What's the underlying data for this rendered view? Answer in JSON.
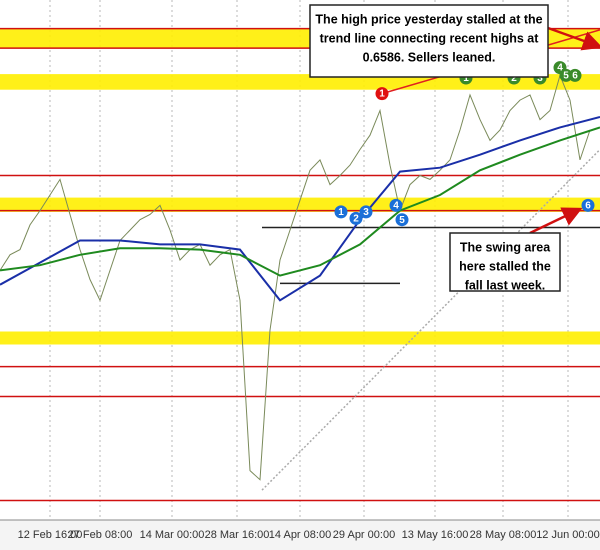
{
  "chart_data": {
    "type": "line",
    "xlim": [
      0,
      120
    ],
    "xticks": [
      {
        "value": 10,
        "label": "12 Feb 16:00"
      },
      {
        "value": 20,
        "label": "27 Feb 08:00"
      },
      {
        "value": 34.4,
        "label": "14 Mar 00:00"
      },
      {
        "value": 47.4,
        "label": "28 Mar 16:00"
      },
      {
        "value": 60,
        "label": "14 Apr 08:00"
      },
      {
        "value": 72.8,
        "label": "29 Apr 00:00"
      },
      {
        "value": 87,
        "label": "13 May 16:00"
      },
      {
        "value": 100.6,
        "label": "28 May 08:00"
      },
      {
        "value": 113.6,
        "label": "12 Jun 00:00"
      }
    ],
    "ylim": [
      0.625,
      0.665
    ],
    "grid": true,
    "series": [
      {
        "color": "#7a8a5a",
        "x": [
          0,
          2,
          4,
          6,
          8,
          10,
          12,
          14,
          16,
          18,
          20,
          22,
          24,
          26,
          28,
          30,
          32,
          34,
          36,
          38,
          40,
          42,
          44,
          46,
          48,
          50,
          52,
          54,
          56,
          58,
          60,
          62,
          64,
          66,
          68,
          70,
          72,
          74,
          76,
          78,
          80,
          82,
          84,
          86,
          88,
          90,
          92,
          94,
          96,
          98,
          100,
          102,
          104,
          106,
          108,
          110,
          112,
          114,
          116,
          118
        ],
        "values": [
          0.6442,
          0.6454,
          0.6458,
          0.6477,
          0.6488,
          0.65,
          0.6512,
          0.6485,
          0.6458,
          0.6435,
          0.6419,
          0.6442,
          0.6465,
          0.6473,
          0.6481,
          0.6485,
          0.6492,
          0.6473,
          0.645,
          0.6458,
          0.6462,
          0.6446,
          0.6454,
          0.6458,
          0.6419,
          0.6288,
          0.6281,
          0.6396,
          0.645,
          0.6473,
          0.6496,
          0.6519,
          0.6527,
          0.6508,
          0.6515,
          0.6523,
          0.6535,
          0.6546,
          0.6565,
          0.6523,
          0.6488,
          0.6508,
          0.6515,
          0.6512,
          0.6519,
          0.6527,
          0.655,
          0.6577,
          0.6558,
          0.6542,
          0.655,
          0.6565,
          0.6573,
          0.6577,
          0.6558,
          0.6565,
          0.6592,
          0.6573,
          0.6527,
          0.655
        ]
      },
      {
        "color": "#1a2fa8",
        "x": [
          0,
          8,
          16,
          24,
          32,
          40,
          48,
          56,
          64,
          72,
          80,
          88,
          96,
          104,
          112,
          120
        ],
        "values": [
          0.6431,
          0.6448,
          0.6465,
          0.6465,
          0.6462,
          0.6462,
          0.6458,
          0.6419,
          0.6438,
          0.6481,
          0.6518,
          0.6521,
          0.6531,
          0.6542,
          0.6552,
          0.656
        ]
      },
      {
        "color": "#1f8a1f",
        "x": [
          0,
          8,
          16,
          24,
          32,
          40,
          48,
          56,
          64,
          72,
          80,
          88,
          96,
          104,
          112,
          120
        ],
        "values": [
          0.6442,
          0.6446,
          0.6454,
          0.6459,
          0.6459,
          0.6458,
          0.6454,
          0.6438,
          0.6446,
          0.6462,
          0.6488,
          0.65,
          0.6519,
          0.6531,
          0.6542,
          0.6552
        ]
      }
    ],
    "bands": [
      {
        "from": 0.6613,
        "to": 0.6628,
        "color": "#ffee00"
      },
      {
        "from": 0.6581,
        "to": 0.6593,
        "color": "#ffee00"
      },
      {
        "from": 0.6487,
        "to": 0.6498,
        "color": "#ffee00"
      },
      {
        "from": 0.6385,
        "to": 0.6395,
        "color": "#ffee00"
      }
    ],
    "levels": {
      "color": "#d01010",
      "values": [
        0.6628,
        0.6613,
        0.6515,
        0.6488,
        0.6368,
        0.6345,
        0.6265
      ]
    },
    "trendlines": [
      {
        "x": [
          76.4,
          120
        ],
        "y": [
          0.6578,
          0.6627
        ],
        "color": "#e02020"
      },
      {
        "x": [
          52.4,
          120
        ],
        "y": [
          0.6273,
          0.6535
        ],
        "color": "#aaaaaa"
      },
      {
        "x": [
          52.4,
          120
        ],
        "y": [
          0.6475,
          0.6475
        ],
        "color": "#222222"
      },
      {
        "x": [
          56,
          80
        ],
        "y": [
          0.6432,
          0.6432
        ],
        "color": "#222222"
      }
    ],
    "markers": [
      {
        "label": "1",
        "color": "#e01010",
        "x": 76.4,
        "y": 0.6578
      },
      {
        "label": "1",
        "color": "#3a8a2a",
        "x": 93.2,
        "y": 0.659
      },
      {
        "label": "2",
        "color": "#3a8a2a",
        "x": 102.8,
        "y": 0.659
      },
      {
        "label": "3",
        "color": "#3a8a2a",
        "x": 108,
        "y": 0.659
      },
      {
        "label": "4",
        "color": "#3a8a2a",
        "x": 112,
        "y": 0.6598
      },
      {
        "label": "5",
        "color": "#3a8a2a",
        "x": 113.2,
        "y": 0.6592
      },
      {
        "label": "6",
        "color": "#3a8a2a",
        "x": 115,
        "y": 0.6592
      },
      {
        "label": "1",
        "color": "#1a6fd8",
        "x": 68.2,
        "y": 0.6487
      },
      {
        "label": "2",
        "color": "#1a6fd8",
        "x": 71.2,
        "y": 0.6482
      },
      {
        "label": "3",
        "color": "#1a6fd8",
        "x": 73.2,
        "y": 0.6487
      },
      {
        "label": "4",
        "color": "#1a6fd8",
        "x": 79.2,
        "y": 0.6492
      },
      {
        "label": "5",
        "color": "#1a6fd8",
        "x": 80.4,
        "y": 0.6481
      },
      {
        "label": "6",
        "color": "#1a6fd8",
        "x": 117.6,
        "y": 0.6492
      }
    ],
    "annotations": [
      {
        "lines": [
          "The high price yesterday stalled at the",
          "trend line connecting recent highs at",
          "0.6586.  Sellers leaned."
        ]
      },
      {
        "lines": [
          "The swing area",
          "here stalled the",
          "fall last week."
        ]
      }
    ]
  }
}
